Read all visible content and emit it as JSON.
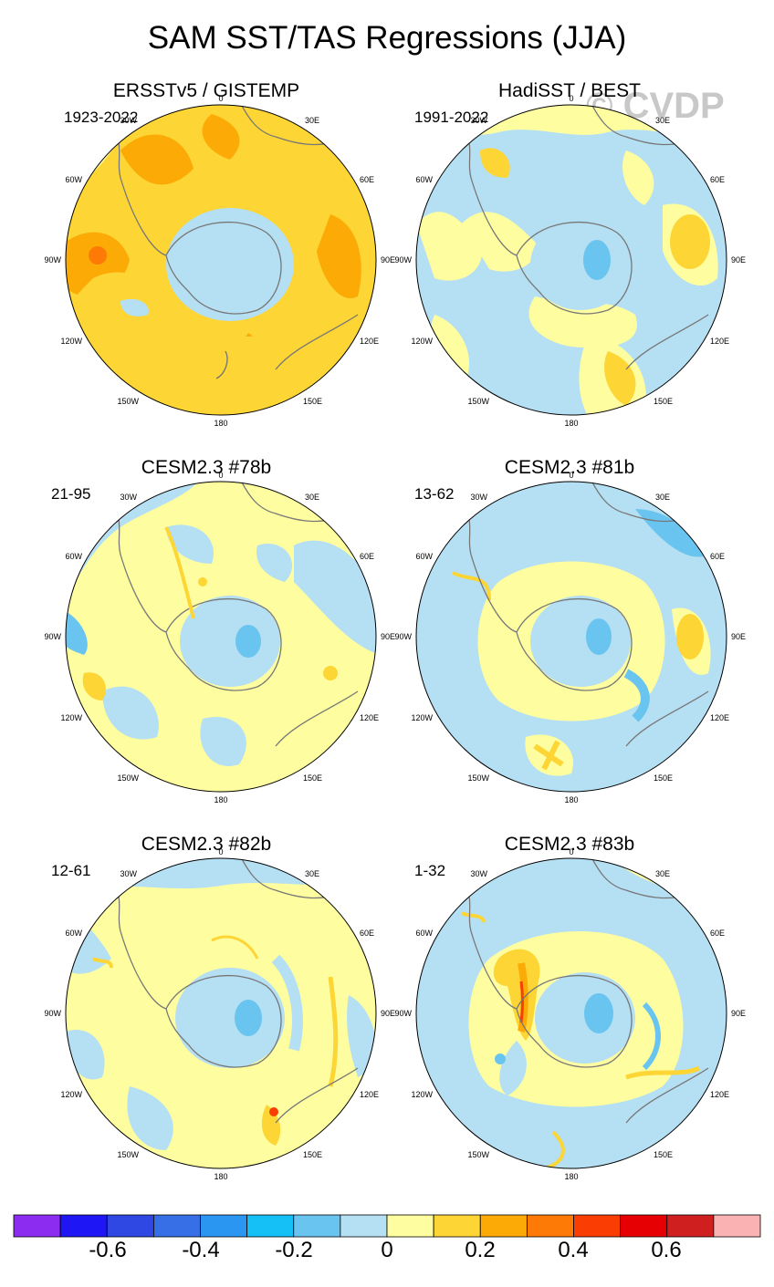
{
  "title": "SAM SST/TAS Regressions (JJA)",
  "watermark": "© CVDP",
  "lon_labels": [
    "0",
    "30E",
    "60E",
    "90E",
    "120E",
    "150E",
    "180",
    "150W",
    "120W",
    "90W",
    "60W",
    "30W"
  ],
  "panels": [
    {
      "title": "ERSSTv5 / GISTEMP",
      "period": "1923-2022"
    },
    {
      "title": "HadiSST / BEST",
      "period": "1991-2022"
    },
    {
      "title": "CESM2.3 #78b",
      "period": "21-95"
    },
    {
      "title": "CESM2.3 #81b",
      "period": "13-62"
    },
    {
      "title": "CESM2.3 #82b",
      "period": "12-61"
    },
    {
      "title": "CESM2.3 #83b",
      "period": "1-32"
    }
  ],
  "colorbar": {
    "colors": [
      "#8b2cf0",
      "#1e16f5",
      "#2f47e3",
      "#376fe6",
      "#2a96f2",
      "#14c0f5",
      "#6ac4f0",
      "#b5dff2",
      "#fefea0",
      "#fdd535",
      "#fcaa06",
      "#fc7a05",
      "#fa3d03",
      "#e70003",
      "#d01f1f",
      "#fbb2b2"
    ],
    "labels": [
      "-0.6",
      "-0.4",
      "-0.2",
      "0",
      "0.2",
      "0.4",
      "0.6"
    ]
  },
  "colors": {
    "yellow": "#fefea0",
    "light_blue": "#b5dff2",
    "mid_blue": "#6ac4f0",
    "gold": "#fdd535",
    "orange": "#fcaa06",
    "dark_orange": "#fc7a05",
    "red": "#fa3d03",
    "land_outline": "#777777"
  }
}
